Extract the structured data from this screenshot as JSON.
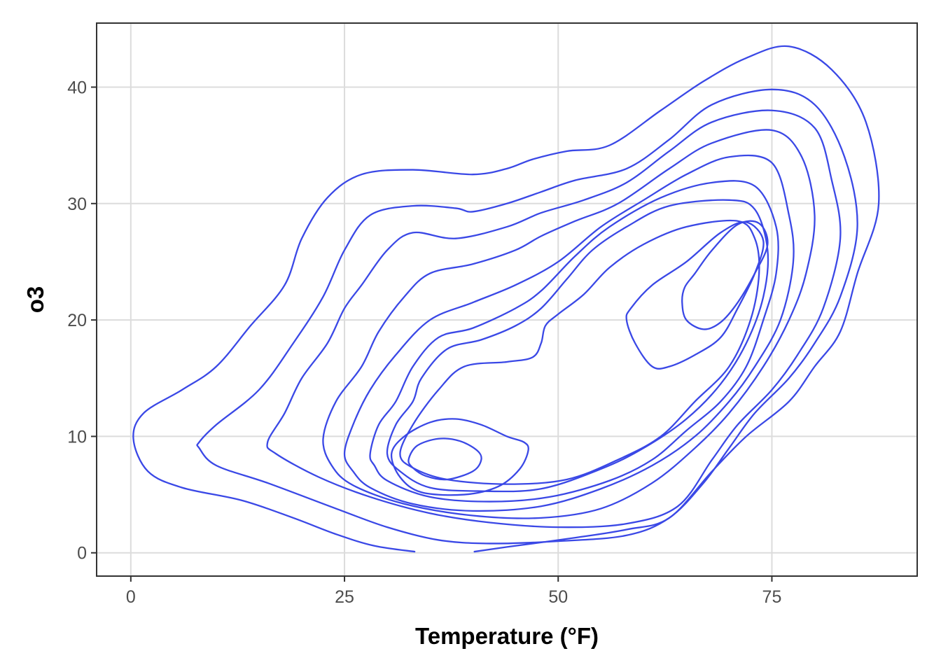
{
  "chart_data": {
    "type": "contour",
    "title": "",
    "xlabel": "Temperature (°F)",
    "ylabel": "o3",
    "xlim": [
      -4,
      92
    ],
    "ylim": [
      -2,
      45.5
    ],
    "xticks": [
      0,
      25,
      50,
      75
    ],
    "yticks": [
      0,
      10,
      20,
      30,
      40
    ],
    "xtick_labels": [
      "0",
      "25",
      "50",
      "75"
    ],
    "ytick_labels": [
      "0",
      "10",
      "20",
      "30",
      "40"
    ],
    "grid": true,
    "line_color": "#3a48e6",
    "contours": [
      {
        "id": "level-1-left",
        "closed": false,
        "points": [
          [
            33.2,
            0.1
          ],
          [
            28.5,
            0.6
          ],
          [
            24,
            1.6
          ],
          [
            19,
            3
          ],
          [
            13,
            4.5
          ],
          [
            6,
            5.6
          ],
          [
            2,
            7
          ],
          [
            0.3,
            9.8
          ],
          [
            1.5,
            12
          ],
          [
            6,
            14
          ],
          [
            10,
            16
          ],
          [
            14,
            19.5
          ],
          [
            18,
            23
          ],
          [
            20,
            27
          ],
          [
            23,
            30.5
          ],
          [
            27,
            32.5
          ],
          [
            33,
            32.9
          ],
          [
            40,
            32.5
          ],
          [
            44,
            33
          ],
          [
            47,
            33.8
          ],
          [
            51,
            34.5
          ],
          [
            56,
            35
          ],
          [
            62,
            38
          ],
          [
            67,
            40.5
          ],
          [
            72,
            42.5
          ],
          [
            77,
            43.5
          ],
          [
            82,
            41.5
          ],
          [
            86,
            37
          ],
          [
            87.5,
            30
          ],
          [
            85,
            24
          ],
          [
            83,
            19
          ],
          [
            80,
            16
          ],
          [
            77,
            13
          ],
          [
            72,
            10
          ],
          [
            68,
            7
          ],
          [
            63,
            3
          ],
          [
            58,
            2
          ],
          [
            52,
            1.3
          ],
          [
            44,
            0.5
          ],
          [
            40.2,
            0.1
          ]
        ]
      },
      {
        "id": "level-2",
        "closed": true,
        "points": [
          [
            8,
            9.5
          ],
          [
            10,
            11
          ],
          [
            15,
            14
          ],
          [
            19,
            18
          ],
          [
            22.5,
            22
          ],
          [
            25,
            26
          ],
          [
            28,
            29
          ],
          [
            33,
            29.8
          ],
          [
            38,
            29.6
          ],
          [
            40,
            29.3
          ],
          [
            44,
            30
          ],
          [
            48,
            31
          ],
          [
            52,
            32
          ],
          [
            58,
            33
          ],
          [
            63,
            35.5
          ],
          [
            68,
            38.5
          ],
          [
            75,
            39.8
          ],
          [
            80,
            38.5
          ],
          [
            83.5,
            34
          ],
          [
            85,
            28
          ],
          [
            83,
            22
          ],
          [
            80,
            18
          ],
          [
            77,
            15
          ],
          [
            73,
            12
          ],
          [
            70,
            9
          ],
          [
            67,
            6
          ],
          [
            63,
            3
          ],
          [
            58,
            1.5
          ],
          [
            50,
            1
          ],
          [
            42,
            0.8
          ],
          [
            36,
            1.1
          ],
          [
            30,
            2.2
          ],
          [
            24,
            3.8
          ],
          [
            16,
            6
          ],
          [
            10,
            7.5
          ],
          [
            8,
            9
          ]
        ]
      },
      {
        "id": "level-3",
        "closed": true,
        "points": [
          [
            16,
            9.5
          ],
          [
            18,
            12
          ],
          [
            20,
            15
          ],
          [
            23,
            18
          ],
          [
            25,
            21
          ],
          [
            27,
            23
          ],
          [
            30,
            26
          ],
          [
            33,
            27.5
          ],
          [
            38,
            27
          ],
          [
            44,
            28
          ],
          [
            48,
            29.2
          ],
          [
            53,
            30.3
          ],
          [
            58,
            31.8
          ],
          [
            63,
            34.5
          ],
          [
            68,
            37
          ],
          [
            75,
            38
          ],
          [
            80,
            36.5
          ],
          [
            82,
            32
          ],
          [
            83,
            27
          ],
          [
            81,
            21
          ],
          [
            78,
            17
          ],
          [
            75,
            14
          ],
          [
            71,
            11
          ],
          [
            68,
            8
          ],
          [
            64,
            4
          ],
          [
            58,
            2.5
          ],
          [
            50,
            2.2
          ],
          [
            42,
            2.6
          ],
          [
            35,
            3.4
          ],
          [
            28,
            4.8
          ],
          [
            22,
            6.5
          ],
          [
            17,
            8.5
          ]
        ]
      },
      {
        "id": "level-4",
        "closed": true,
        "points": [
          [
            22.5,
            9.8
          ],
          [
            24,
            13
          ],
          [
            27,
            16
          ],
          [
            29,
            19
          ],
          [
            32,
            22
          ],
          [
            35,
            24
          ],
          [
            40,
            24.8
          ],
          [
            45,
            26
          ],
          [
            48,
            27.2
          ],
          [
            52,
            28.5
          ],
          [
            57,
            30
          ],
          [
            63,
            33
          ],
          [
            68,
            35.2
          ],
          [
            75,
            36.3
          ],
          [
            78.5,
            34
          ],
          [
            80,
            29
          ],
          [
            79,
            24
          ],
          [
            77,
            20
          ],
          [
            74,
            16
          ],
          [
            70,
            12
          ],
          [
            66,
            9
          ],
          [
            61,
            6
          ],
          [
            55,
            3.8
          ],
          [
            48,
            3
          ],
          [
            40,
            3.2
          ],
          [
            32,
            4.2
          ],
          [
            26,
            5.8
          ],
          [
            23.5,
            7.5
          ]
        ]
      },
      {
        "id": "level-5",
        "closed": true,
        "points": [
          [
            25,
            8.5
          ],
          [
            26,
            11
          ],
          [
            28,
            14
          ],
          [
            31,
            17
          ],
          [
            35,
            20
          ],
          [
            40,
            21.5
          ],
          [
            45,
            23
          ],
          [
            50,
            25
          ],
          [
            55,
            28
          ],
          [
            60,
            30.3
          ],
          [
            65,
            32.5
          ],
          [
            70,
            34
          ],
          [
            75,
            33.5
          ],
          [
            77,
            29
          ],
          [
            77.5,
            25
          ],
          [
            76,
            20
          ],
          [
            73,
            16
          ],
          [
            70,
            13
          ],
          [
            66,
            10
          ],
          [
            61,
            7.5
          ],
          [
            55,
            5.5
          ],
          [
            48,
            4
          ],
          [
            40,
            3.6
          ],
          [
            33,
            4.2
          ],
          [
            28,
            5.6
          ],
          [
            26,
            7
          ]
        ]
      },
      {
        "id": "level-6",
        "closed": true,
        "points": [
          [
            28,
            8.5
          ],
          [
            29,
            11
          ],
          [
            31,
            13
          ],
          [
            33,
            16
          ],
          [
            36,
            18.5
          ],
          [
            40,
            19.3
          ],
          [
            45,
            21
          ],
          [
            48,
            22.5
          ],
          [
            52,
            25.5
          ],
          [
            56,
            28
          ],
          [
            62,
            30.5
          ],
          [
            68,
            31.8
          ],
          [
            73,
            31.5
          ],
          [
            75.5,
            28
          ],
          [
            75.5,
            24
          ],
          [
            74,
            20
          ],
          [
            72,
            16
          ],
          [
            69,
            13
          ],
          [
            65,
            10.5
          ],
          [
            61,
            8
          ],
          [
            56,
            6.2
          ],
          [
            49,
            4.8
          ],
          [
            42,
            4.4
          ],
          [
            35,
            4.8
          ],
          [
            30,
            6.2
          ],
          [
            28.5,
            7.5
          ]
        ]
      },
      {
        "id": "level-7",
        "closed": true,
        "points": [
          [
            30,
            8.5
          ],
          [
            31,
            11
          ],
          [
            33,
            13
          ],
          [
            34,
            15
          ],
          [
            37,
            17.5
          ],
          [
            41,
            18.3
          ],
          [
            45,
            19.5
          ],
          [
            48,
            21
          ],
          [
            51,
            23.5
          ],
          [
            54,
            26
          ],
          [
            58,
            28
          ],
          [
            63,
            29.8
          ],
          [
            70,
            30.3
          ],
          [
            73,
            29.5
          ],
          [
            74.5,
            26
          ],
          [
            74,
            22
          ],
          [
            72,
            18
          ],
          [
            69,
            14.5
          ],
          [
            65,
            11.5
          ],
          [
            60,
            9
          ],
          [
            55,
            7.2
          ],
          [
            48,
            5.5
          ],
          [
            41,
            5.3
          ],
          [
            35,
            5.6
          ],
          [
            31.5,
            7
          ]
        ]
      },
      {
        "id": "level-8",
        "closed": true,
        "points": [
          [
            31.5,
            8.5
          ],
          [
            33,
            11
          ],
          [
            36,
            14
          ],
          [
            39,
            16
          ],
          [
            44,
            16.4
          ],
          [
            47,
            16.8
          ],
          [
            48,
            18
          ],
          [
            48.5,
            19.5
          ],
          [
            50,
            20.5
          ],
          [
            53,
            22.2
          ],
          [
            56,
            24.5
          ],
          [
            60,
            26.5
          ],
          [
            65,
            28
          ],
          [
            71,
            28.5
          ],
          [
            73,
            27
          ],
          [
            73.5,
            24
          ],
          [
            72.5,
            20
          ],
          [
            70,
            16
          ],
          [
            66,
            13
          ],
          [
            62,
            10
          ],
          [
            57,
            8
          ],
          [
            51,
            6.3
          ],
          [
            44,
            5.9
          ],
          [
            37,
            6.3
          ],
          [
            33,
            7.3
          ]
        ]
      },
      {
        "id": "level-9-peak-right",
        "closed": true,
        "points": [
          [
            58,
            20
          ],
          [
            59,
            18
          ],
          [
            61,
            16
          ],
          [
            63,
            16
          ],
          [
            66,
            17
          ],
          [
            69,
            18.5
          ],
          [
            71,
            21
          ],
          [
            73,
            24
          ],
          [
            74,
            26.8
          ],
          [
            72,
            28.4
          ],
          [
            69,
            27.5
          ],
          [
            65,
            25
          ],
          [
            61,
            23
          ],
          [
            58.5,
            21
          ]
        ]
      },
      {
        "id": "level-9-peak-left",
        "closed": true,
        "points": [
          [
            30.5,
            8.5
          ],
          [
            32,
            10
          ],
          [
            35,
            11.2
          ],
          [
            38,
            11.5
          ],
          [
            41,
            11
          ],
          [
            44,
            10
          ],
          [
            46,
            9.5
          ],
          [
            46.5,
            8.8
          ],
          [
            45.5,
            7.2
          ],
          [
            43,
            5.7
          ],
          [
            39,
            5
          ],
          [
            34,
            5.2
          ],
          [
            31.5,
            6.5
          ]
        ]
      },
      {
        "id": "level-10-inner-right",
        "closed": true,
        "points": [
          [
            64.5,
            21.5
          ],
          [
            65,
            20
          ],
          [
            67,
            19.2
          ],
          [
            69,
            19.8
          ],
          [
            71,
            21.5
          ],
          [
            73,
            24
          ],
          [
            74.5,
            26.5
          ],
          [
            73.5,
            28.3
          ],
          [
            71,
            28.2
          ],
          [
            68,
            26
          ],
          [
            66,
            24
          ],
          [
            64.8,
            22.8
          ]
        ]
      },
      {
        "id": "level-10-inner-left",
        "closed": true,
        "points": [
          [
            32.5,
            8
          ],
          [
            33.5,
            9.2
          ],
          [
            36,
            9.8
          ],
          [
            38.5,
            9.6
          ],
          [
            40.5,
            8.8
          ],
          [
            41,
            8
          ],
          [
            40,
            7
          ],
          [
            37,
            6.3
          ],
          [
            34.5,
            6.6
          ],
          [
            33,
            7.3
          ]
        ]
      }
    ]
  }
}
